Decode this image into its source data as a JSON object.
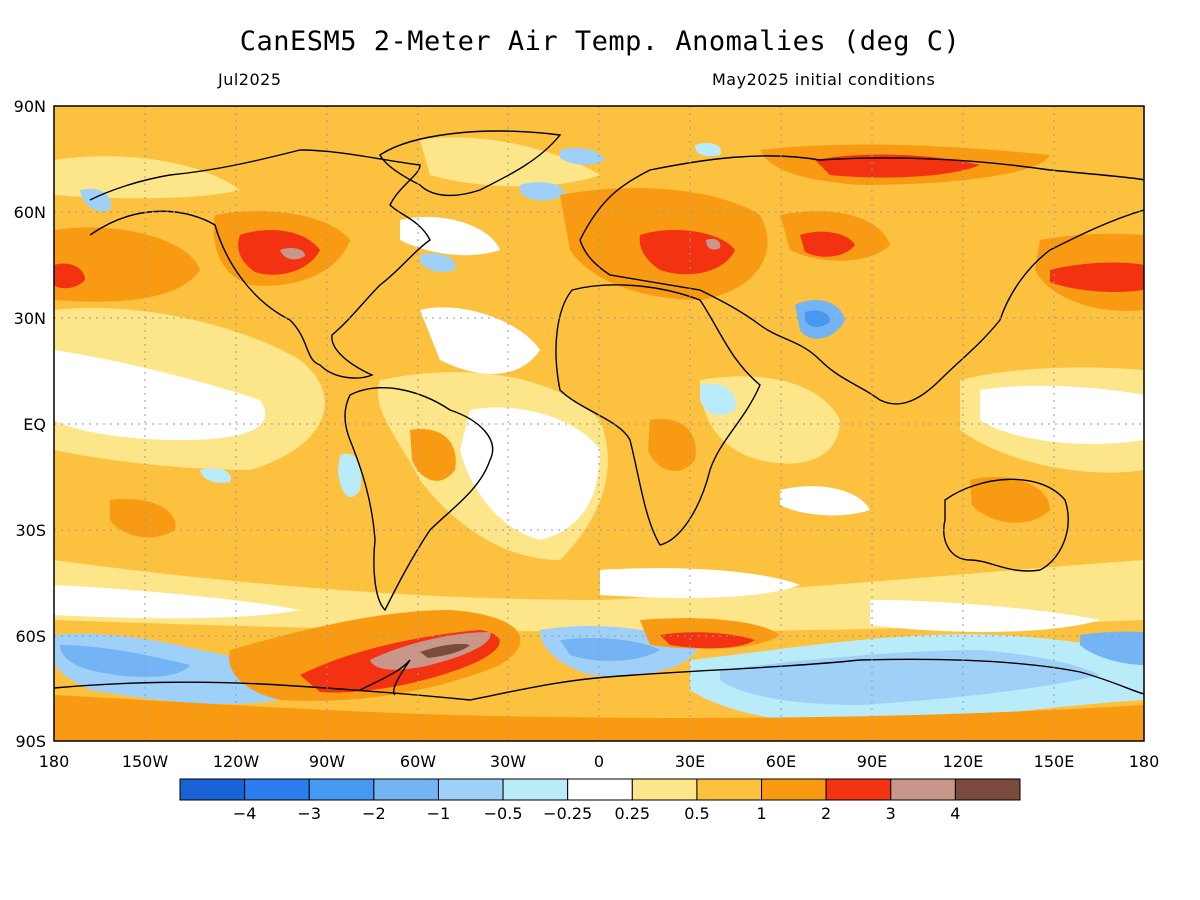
{
  "title": "CanESM5 2-Meter Air Temp. Anomalies (deg C)",
  "subtitle_left": "Jul2025",
  "subtitle_right": "May2025 initial conditions",
  "lat_labels": [
    "90N",
    "60N",
    "30N",
    "EQ",
    "30S",
    "60S",
    "90S"
  ],
  "lon_labels": [
    "180",
    "150W",
    "120W",
    "90W",
    "60W",
    "30W",
    "0",
    "30E",
    "60E",
    "90E",
    "120E",
    "150E",
    "180"
  ],
  "colorbar": {
    "colors": [
      "#1a63d6",
      "#2b7df0",
      "#4499f2",
      "#74b4f4",
      "#9fd0f8",
      "#b9ecf8",
      "#ffffff",
      "#fde68a",
      "#fcc13f",
      "#f99b12",
      "#f33212",
      "#c9978a",
      "#7a4a3c"
    ],
    "labels": [
      "-4",
      "-3",
      "-2",
      "-1",
      "-0.5",
      "-0.25",
      "0.25",
      "0.5",
      "1",
      "2",
      "3",
      "4"
    ]
  },
  "chart_data": {
    "type": "heatmap",
    "projection": "equirectangular",
    "variable": "2-Meter Air Temp. Anomalies (deg C)",
    "valid": "Jul2025",
    "init": "May2025 initial conditions",
    "lon_range": [
      -180,
      180
    ],
    "lat_range": [
      -90,
      90
    ],
    "levels": [
      -4,
      -3,
      -2,
      -1,
      -0.5,
      -0.25,
      0.25,
      0.5,
      1,
      2,
      3,
      4
    ],
    "grid": true
  }
}
